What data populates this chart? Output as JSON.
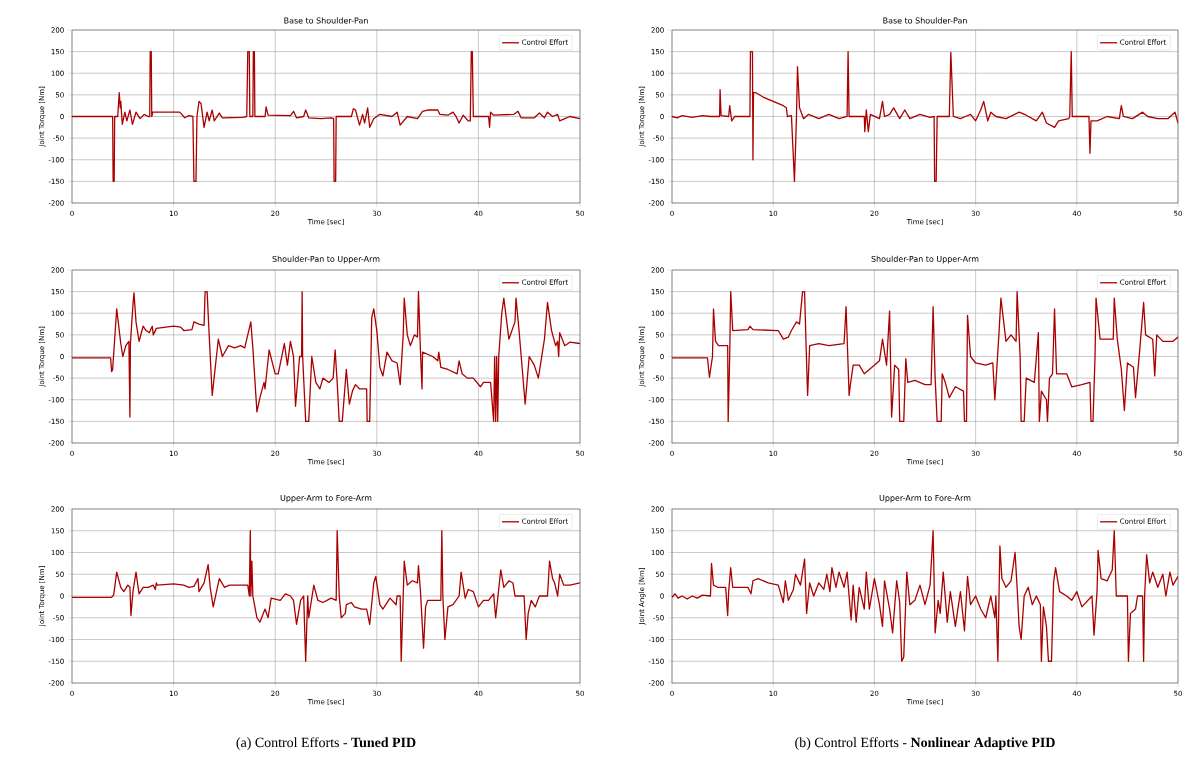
{
  "chart_data": [
    {
      "type": "line",
      "title": "Base to Shoulder-Pan",
      "xlabel": "Time [sec]",
      "ylabel": "Joint Torque [Nm]",
      "xlim": [
        0,
        50
      ],
      "ylim": [
        -200,
        200
      ],
      "xticks": [
        0,
        10,
        20,
        30,
        40,
        50
      ],
      "yticks": [
        -200,
        -150,
        -100,
        -50,
        0,
        50,
        100,
        150,
        200
      ],
      "grid": true,
      "legend": "top right",
      "series": [
        {
          "name": "Control Effort",
          "color": "#aa0000",
          "x": [
            0,
            4.0,
            4.05,
            4.15,
            4.2,
            4.5,
            4.65,
            4.75,
            4.8,
            4.95,
            5.2,
            5.4,
            5.7,
            5.95,
            6.3,
            6.7,
            7.1,
            7.5,
            7.65,
            7.7,
            7.8,
            7.85,
            7.95,
            8.1,
            10.6,
            11.1,
            11.5,
            11.9,
            12.0,
            12.2,
            12.3,
            12.5,
            12.7,
            13.0,
            13.3,
            13.5,
            13.8,
            14.0,
            14.5,
            14.8,
            16.8,
            17.2,
            17.3,
            17.45,
            17.5,
            17.8,
            17.85,
            17.95,
            18.0,
            19.0,
            19.1,
            19.3,
            21.5,
            21.8,
            22.1,
            22.8,
            23.0,
            23.3,
            24.5,
            25.5,
            25.75,
            25.8,
            25.95,
            26.0,
            27.5,
            27.7,
            27.9,
            28.3,
            28.6,
            28.8,
            29.1,
            29.3,
            29.7,
            30.3,
            31.5,
            32.0,
            32.3,
            33.0,
            34.0,
            34.5,
            35.0,
            36.0,
            36.2,
            37.0,
            37.5,
            37.8,
            38.1,
            38.5,
            39.0,
            39.2,
            39.3,
            39.4,
            39.5,
            41.0,
            41.1,
            41.2,
            41.5,
            43.5,
            43.9,
            44.2,
            45.5,
            46.0,
            46.5,
            46.8,
            47.3,
            47.8,
            48.0,
            48.5,
            49.0,
            50
          ],
          "values": [
            0,
            0,
            -150,
            -150,
            0,
            0,
            55,
            20,
            35,
            -18,
            10,
            -10,
            15,
            -18,
            10,
            -5,
            5,
            0,
            0,
            150,
            150,
            0,
            10,
            10,
            10,
            -3,
            2,
            0,
            -150,
            -150,
            0,
            35,
            30,
            -25,
            10,
            -10,
            15,
            -10,
            8,
            -3,
            -2,
            0,
            150,
            150,
            0,
            0,
            150,
            150,
            0,
            0,
            22,
            3,
            2,
            12,
            -3,
            0,
            15,
            -3,
            -5,
            -3,
            -5,
            -150,
            -150,
            0,
            0,
            18,
            15,
            -20,
            5,
            -15,
            20,
            -25,
            -5,
            5,
            0,
            10,
            -20,
            0,
            -5,
            12,
            15,
            15,
            5,
            3,
            10,
            0,
            -15,
            3,
            -10,
            -10,
            150,
            150,
            0,
            0,
            -25,
            10,
            3,
            5,
            12,
            -3,
            -3,
            8,
            -3,
            10,
            0,
            5,
            -10,
            -5,
            0,
            -5
          ]
        }
      ]
    },
    {
      "type": "line",
      "title": "Shoulder-Pan to Upper-Arm",
      "xlabel": "Time [sec]",
      "ylabel": "Joint Torque [Nm]",
      "xlim": [
        0,
        50
      ],
      "ylim": [
        -200,
        200
      ],
      "xticks": [
        0,
        10,
        20,
        30,
        40,
        50
      ],
      "yticks": [
        -200,
        -150,
        -100,
        -50,
        0,
        50,
        100,
        150,
        200
      ],
      "grid": true,
      "legend": "top right",
      "series": [
        {
          "name": "Control Effort",
          "color": "#aa0000",
          "x": [
            0,
            3.8,
            3.9,
            4.0,
            4.4,
            4.8,
            5.0,
            5.3,
            5.6,
            5.7,
            5.75,
            6.0,
            6.1,
            6.3,
            6.6,
            7.0,
            7.3,
            7.6,
            7.9,
            8.0,
            8.3,
            10.0,
            10.7,
            11.0,
            11.8,
            12.0,
            12.5,
            13.0,
            13.1,
            13.3,
            13.5,
            13.8,
            14.4,
            14.8,
            15.4,
            16.0,
            16.6,
            17.0,
            17.6,
            17.8,
            18.2,
            18.5,
            18.9,
            19.0,
            19.4,
            20.0,
            20.3,
            20.9,
            21.2,
            21.5,
            21.8,
            22.0,
            22.4,
            22.6,
            22.65,
            22.7,
            23.0,
            23.3,
            23.6,
            24.0,
            24.4,
            24.7,
            25.3,
            25.7,
            25.9,
            26.1,
            26.3,
            26.6,
            27.0,
            27.3,
            27.6,
            27.9,
            28.3,
            29.0,
            29.05,
            29.3,
            29.5,
            29.7,
            30.0,
            30.3,
            30.6,
            31.0,
            31.5,
            32.0,
            32.3,
            32.6,
            32.7,
            33.0,
            33.3,
            33.7,
            34.0,
            34.1,
            34.3,
            34.45,
            34.5,
            35.5,
            36.0,
            36.1,
            36.3,
            37,
            37.9,
            38.1,
            38.4,
            38.9,
            39.5,
            40.2,
            40.5,
            41.2,
            41.5,
            41.6,
            41.7,
            41.8,
            41.9,
            42.0,
            42.3,
            42.5,
            43.0,
            43.6,
            43.7,
            44.0,
            44.6,
            45.0,
            45.5,
            45.9,
            46.5,
            46.8,
            47.2,
            47.6,
            47.8,
            47.9,
            48.0,
            48.5,
            49,
            50
          ],
          "values": [
            -3,
            -3,
            -35,
            -30,
            110,
            30,
            0,
            25,
            35,
            -140,
            30,
            120,
            147,
            80,
            35,
            70,
            60,
            55,
            70,
            50,
            65,
            70,
            68,
            60,
            62,
            80,
            75,
            72,
            150,
            150,
            50,
            -90,
            40,
            0,
            25,
            20,
            25,
            20,
            80,
            20,
            -128,
            -95,
            -60,
            -75,
            15,
            -40,
            -40,
            30,
            -20,
            35,
            0,
            -115,
            0,
            0,
            150,
            0,
            -150,
            -150,
            0,
            -60,
            -75,
            -50,
            -60,
            -50,
            15,
            -60,
            -150,
            -150,
            -30,
            -110,
            -80,
            -65,
            -75,
            -75,
            -150,
            -150,
            90,
            110,
            60,
            -25,
            -45,
            10,
            -10,
            -15,
            -65,
            50,
            135,
            50,
            25,
            50,
            45,
            150,
            10,
            -75,
            10,
            0,
            -10,
            10,
            -25,
            -30,
            -40,
            -10,
            -40,
            -50,
            -50,
            -70,
            -60,
            -60,
            -150,
            0,
            -150,
            0,
            -150,
            0,
            100,
            135,
            40,
            80,
            135,
            60,
            -110,
            0,
            -20,
            -50,
            40,
            125,
            60,
            25,
            35,
            0,
            55,
            25,
            33,
            30
          ]
        }
      ]
    },
    {
      "type": "line",
      "title": "Upper-Arm to Fore-Arm",
      "xlabel": "Time [sec]",
      "ylabel": "Joint Torque [Nm]",
      "xlim": [
        0,
        50
      ],
      "ylim": [
        -200,
        200
      ],
      "xticks": [
        0,
        10,
        20,
        30,
        40,
        50
      ],
      "yticks": [
        -200,
        -150,
        -100,
        -50,
        0,
        50,
        100,
        150,
        200
      ],
      "grid": true,
      "legend": "top right",
      "annotations": [
        "(a) Control Efforts - **Tuned PID**"
      ],
      "series": [
        {
          "name": "Control Effort",
          "color": "#aa0000",
          "x": [
            0,
            3.9,
            4.1,
            4.4,
            4.8,
            5.1,
            5.5,
            5.7,
            5.8,
            6.0,
            6.3,
            6.6,
            7.0,
            7.5,
            8.0,
            8.2,
            8.3,
            8.4,
            10,
            11.0,
            11.5,
            12.0,
            12.4,
            12.5,
            13.0,
            13.4,
            13.6,
            13.9,
            14.5,
            15.0,
            15.5,
            16.5,
            17.3,
            17.45,
            17.55,
            17.6,
            17.7,
            17.8,
            18.2,
            18.5,
            19.0,
            19.3,
            19.6,
            20.5,
            21.0,
            21.5,
            21.8,
            22.1,
            22.5,
            22.8,
            23.0,
            23.2,
            23.3,
            23.8,
            24.2,
            24.7,
            25.5,
            26.0,
            26.1,
            26.3,
            26.5,
            26.9,
            27.0,
            27.5,
            27.8,
            28.5,
            29.0,
            29.3,
            29.7,
            29.9,
            30.3,
            30.6,
            31.3,
            31.9,
            32.0,
            32.3,
            32.4,
            32.6,
            32.7,
            33.0,
            33.5,
            34.0,
            34.1,
            34.3,
            34.6,
            34.8,
            35.0,
            35.5,
            36.3,
            36.4,
            36.5,
            36.7,
            37.0,
            37.5,
            38.1,
            38.3,
            38.7,
            39.0,
            39.5,
            40.0,
            40.5,
            41.0,
            41.5,
            41.7,
            42.2,
            42.5,
            43.0,
            43.4,
            43.6,
            44.5,
            44.7,
            44.9,
            45.2,
            45.6,
            46.0,
            46.8,
            47.0,
            47.3,
            47.5,
            47.8,
            48.0,
            48.4,
            49.0,
            50
          ],
          "values": [
            -3,
            -3,
            2,
            55,
            20,
            10,
            25,
            20,
            -45,
            10,
            55,
            5,
            20,
            20,
            25,
            15,
            30,
            25,
            28,
            25,
            20,
            22,
            40,
            10,
            30,
            72,
            20,
            -25,
            40,
            20,
            25,
            25,
            25,
            0,
            150,
            0,
            80,
            0,
            -50,
            -60,
            -30,
            -50,
            -5,
            -10,
            5,
            0,
            -10,
            -65,
            -10,
            0,
            -150,
            0,
            -50,
            25,
            -10,
            -15,
            -5,
            -10,
            150,
            0,
            -50,
            -40,
            -20,
            -15,
            -25,
            -30,
            -30,
            -65,
            30,
            45,
            -20,
            -30,
            -5,
            -20,
            0,
            0,
            -150,
            0,
            80,
            25,
            35,
            30,
            70,
            10,
            -120,
            -25,
            -10,
            -10,
            -10,
            150,
            0,
            -100,
            -25,
            -20,
            0,
            55,
            -5,
            15,
            10,
            -25,
            -10,
            -10,
            5,
            -50,
            60,
            20,
            35,
            30,
            0,
            0,
            -100,
            -40,
            -10,
            -25,
            0,
            0,
            80,
            40,
            30,
            0,
            50,
            25,
            25,
            30
          ]
        }
      ]
    },
    {
      "type": "line",
      "title": "Base to Shoulder-Pan",
      "xlabel": "Time [sec]",
      "ylabel": "Joint Torque [Nm]",
      "xlim": [
        0,
        50
      ],
      "ylim": [
        -200,
        200
      ],
      "xticks": [
        0,
        10,
        20,
        30,
        40,
        50
      ],
      "yticks": [
        -200,
        -150,
        -100,
        -50,
        0,
        50,
        100,
        150,
        200
      ],
      "grid": true,
      "legend": "top right",
      "series": [
        {
          "name": "Control Effort",
          "color": "#aa0000",
          "x": [
            0,
            0.5,
            1,
            2,
            3,
            3.8,
            4.7,
            4.75,
            4.85,
            5.6,
            5.7,
            5.9,
            6.2,
            7.7,
            7.75,
            7.95,
            8.0,
            8.05,
            8.3,
            9.0,
            10,
            11,
            11.3,
            11.4,
            11.8,
            12.1,
            12.3,
            12.4,
            12.6,
            13.0,
            13.5,
            14.5,
            15.5,
            16.5,
            17.3,
            17.4,
            17.5,
            19.0,
            19.05,
            19.2,
            19.4,
            19.6,
            20.5,
            20.8,
            21.0,
            21.5,
            21.9,
            22.5,
            23.0,
            23.5,
            24.5,
            25.5,
            25.9,
            25.95,
            26.1,
            26.2,
            27.4,
            27.55,
            27.8,
            28.5,
            29.0,
            29.5,
            30.0,
            30.5,
            30.8,
            31.2,
            31.5,
            32,
            33,
            34.3,
            35.0,
            36.0,
            36.6,
            37.0,
            37.8,
            38.2,
            39.2,
            39.3,
            39.45,
            39.55,
            41.2,
            41.3,
            41.4,
            42.0,
            43,
            44.2,
            44.4,
            44.6,
            45.5,
            46.5,
            47,
            48,
            49,
            49.7,
            50
          ],
          "values": [
            0,
            -3,
            2,
            -2,
            2,
            0,
            0,
            62,
            2,
            0,
            25,
            -10,
            0,
            0,
            150,
            150,
            -100,
            55,
            55,
            45,
            35,
            25,
            20,
            0,
            2,
            -150,
            0,
            115,
            20,
            -5,
            5,
            -5,
            5,
            -5,
            0,
            150,
            0,
            0,
            -35,
            15,
            -35,
            5,
            -5,
            35,
            0,
            5,
            20,
            -5,
            15,
            -5,
            5,
            -2,
            0,
            -150,
            -150,
            0,
            0,
            148,
            0,
            -5,
            0,
            5,
            -10,
            15,
            35,
            -10,
            10,
            0,
            -5,
            10,
            3,
            -10,
            10,
            -15,
            -25,
            -10,
            -5,
            0,
            150,
            0,
            0,
            -85,
            -10,
            -10,
            0,
            -5,
            25,
            0,
            -5,
            10,
            0,
            -5,
            -5,
            10,
            -15
          ]
        }
      ]
    },
    {
      "type": "line",
      "title": "Shoulder-Pan to Upper-Arm",
      "xlabel": "Time [sec]",
      "ylabel": "Joint Torque [Nm]",
      "xlim": [
        0,
        50
      ],
      "ylim": [
        -200,
        200
      ],
      "xticks": [
        0,
        10,
        20,
        30,
        40,
        50
      ],
      "yticks": [
        -200,
        -150,
        -100,
        -50,
        0,
        50,
        100,
        150,
        200
      ],
      "grid": true,
      "legend": "top right",
      "series": [
        {
          "name": "Control Effort",
          "color": "#aa0000",
          "x": [
            0,
            3.5,
            3.7,
            4.0,
            4.1,
            4.3,
            4.6,
            5.5,
            5.55,
            5.7,
            5.8,
            6.0,
            7.5,
            7.7,
            8.0,
            10.5,
            11.0,
            11.5,
            11.8,
            12.3,
            12.6,
            12.9,
            13.1,
            13.3,
            13.4,
            13.6,
            14.5,
            15.5,
            17.0,
            17.2,
            17.5,
            17.6,
            17.9,
            18.5,
            19.0,
            19.5,
            20.5,
            20.8,
            21.2,
            21.5,
            21.7,
            22.0,
            22.4,
            22.5,
            22.9,
            23.1,
            23.3,
            24.0,
            25.0,
            25.6,
            25.8,
            26.0,
            26.2,
            26.6,
            26.7,
            27.0,
            27.4,
            28.0,
            28.8,
            28.9,
            29.1,
            29.2,
            29.5,
            30.0,
            31.0,
            31.7,
            31.9,
            32.3,
            32.5,
            33.0,
            33.5,
            34.0,
            34.1,
            34.4,
            34.5,
            34.8,
            35.0,
            35.8,
            36.2,
            36.3,
            36.5,
            37.0,
            37.1,
            37.3,
            37.6,
            37.8,
            38.0,
            39.0,
            39.5,
            40.5,
            41.3,
            41.4,
            41.6,
            41.8,
            41.9,
            42.3,
            43.0,
            43.6,
            43.7,
            44.0,
            44.4,
            44.7,
            45.0,
            45.6,
            45.8,
            46.2,
            46.6,
            46.8,
            47.5,
            47.7,
            47.9,
            48.5,
            49.5,
            50
          ],
          "values": [
            -3,
            -3,
            -48,
            0,
            110,
            35,
            25,
            25,
            -150,
            0,
            150,
            60,
            62,
            70,
            62,
            60,
            40,
            45,
            60,
            80,
            75,
            150,
            150,
            -15,
            -90,
            25,
            30,
            25,
            30,
            115,
            -90,
            -70,
            -20,
            -20,
            -40,
            -30,
            -10,
            40,
            -20,
            105,
            -140,
            -20,
            -30,
            -150,
            -150,
            -5,
            -60,
            -55,
            -65,
            -65,
            115,
            -50,
            -150,
            -150,
            -40,
            -60,
            -95,
            -70,
            -80,
            -150,
            -150,
            95,
            0,
            -15,
            -20,
            -15,
            -100,
            50,
            135,
            35,
            50,
            35,
            150,
            0,
            -150,
            -150,
            -50,
            -60,
            55,
            -150,
            -80,
            -100,
            -150,
            -50,
            -40,
            110,
            -40,
            -40,
            -70,
            -65,
            -60,
            -150,
            -150,
            0,
            135,
            40,
            40,
            40,
            135,
            40,
            -30,
            -125,
            -15,
            -25,
            -95,
            10,
            125,
            50,
            40,
            -45,
            50,
            35,
            35,
            45
          ]
        }
      ]
    },
    {
      "type": "line",
      "title": "Upper-Arm to Fore-Arm",
      "xlabel": "Time [sec]",
      "ylabel": "Joint Angle [Nm]",
      "xlim": [
        0,
        50
      ],
      "ylim": [
        -200,
        200
      ],
      "xticks": [
        0,
        10,
        20,
        30,
        40,
        50
      ],
      "yticks": [
        -200,
        -150,
        -100,
        -50,
        0,
        50,
        100,
        150,
        200
      ],
      "grid": true,
      "legend": "top right",
      "annotations": [
        "(b) Control Efforts - **Nonlinear Adaptive PID**"
      ],
      "series": [
        {
          "name": "Control Effort",
          "color": "#aa0000",
          "x": [
            0,
            0.3,
            0.6,
            1,
            1.5,
            2,
            2.5,
            3,
            3.8,
            3.9,
            4.1,
            4.5,
            5.3,
            5.5,
            5.6,
            5.8,
            6.0,
            7.5,
            7.8,
            8.0,
            8.5,
            9.5,
            10.5,
            11.0,
            11.2,
            11.5,
            12.0,
            12.2,
            12.7,
            13.1,
            13.3,
            13.6,
            14.0,
            14.5,
            15.0,
            15.3,
            15.6,
            15.8,
            16.2,
            16.5,
            17.0,
            17.3,
            17.5,
            17.7,
            17.9,
            18.2,
            18.5,
            19.0,
            19.2,
            19.5,
            20.0,
            20.5,
            20.8,
            21.0,
            21.5,
            21.8,
            22.2,
            22.5,
            22.7,
            22.9,
            23.2,
            23.5,
            24.0,
            24.5,
            25.0,
            25.5,
            25.8,
            26.0,
            26.3,
            26.5,
            26.8,
            27.2,
            27.5,
            28.0,
            28.5,
            28.9,
            29.2,
            29.5,
            30.0,
            30.5,
            31.0,
            31.5,
            31.9,
            32.0,
            32.2,
            32.4,
            32.6,
            33.0,
            33.5,
            33.9,
            34.1,
            34.3,
            34.5,
            34.8,
            35.2,
            35.6,
            36.0,
            36.4,
            36.5,
            36.7,
            37.0,
            37.2,
            37.5,
            37.7,
            37.9,
            38.3,
            39.0,
            39.5,
            40.0,
            40.5,
            41.5,
            41.7,
            42.0,
            42.1,
            42.4,
            43.0,
            43.5,
            43.7,
            43.9,
            45.0,
            45.1,
            45.3,
            45.8,
            46.0,
            46.5,
            46.6,
            46.7,
            46.9,
            47.2,
            47.5,
            48.0,
            48.5,
            48.8,
            49.2,
            49.5,
            50
          ],
          "values": [
            -3,
            5,
            -5,
            0,
            -7,
            0,
            -5,
            2,
            0,
            75,
            25,
            20,
            20,
            -45,
            10,
            65,
            20,
            20,
            5,
            35,
            40,
            30,
            25,
            -15,
            35,
            -10,
            15,
            50,
            25,
            85,
            -40,
            30,
            0,
            30,
            15,
            50,
            10,
            65,
            20,
            55,
            20,
            55,
            0,
            -55,
            25,
            -60,
            20,
            -30,
            55,
            -30,
            40,
            -20,
            -70,
            35,
            -30,
            -85,
            35,
            -15,
            -150,
            -140,
            55,
            -20,
            -10,
            25,
            -20,
            25,
            150,
            -85,
            -10,
            -40,
            55,
            -60,
            10,
            -70,
            10,
            -80,
            45,
            -20,
            0,
            -30,
            -50,
            0,
            -50,
            0,
            -150,
            115,
            40,
            20,
            35,
            100,
            20,
            -70,
            -100,
            0,
            20,
            -20,
            0,
            -20,
            -150,
            -25,
            -70,
            -150,
            -150,
            30,
            65,
            10,
            0,
            -10,
            10,
            -25,
            0,
            -90,
            10,
            105,
            40,
            35,
            60,
            150,
            0,
            0,
            -150,
            -40,
            -30,
            0,
            0,
            -150,
            0,
            95,
            30,
            55,
            20,
            50,
            0,
            55,
            25,
            45
          ]
        }
      ]
    }
  ]
}
